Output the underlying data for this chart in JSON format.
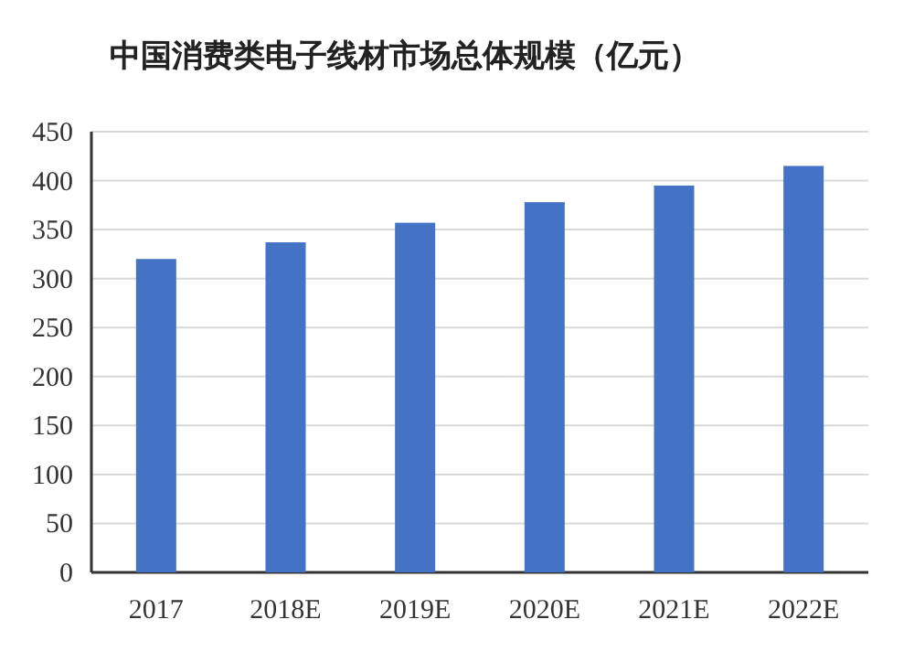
{
  "chart_data": {
    "type": "bar",
    "title": "中国消费类电子线材市场总体规模（亿元）",
    "categories": [
      "2017",
      "2018E",
      "2019E",
      "2020E",
      "2021E",
      "2022E"
    ],
    "values": [
      320,
      337,
      357,
      378,
      395,
      415
    ],
    "color": "#4472c4",
    "ylim": [
      0,
      450
    ],
    "yticks": [
      0,
      50,
      100,
      150,
      200,
      250,
      300,
      350,
      400,
      450
    ],
    "grid": "y"
  }
}
